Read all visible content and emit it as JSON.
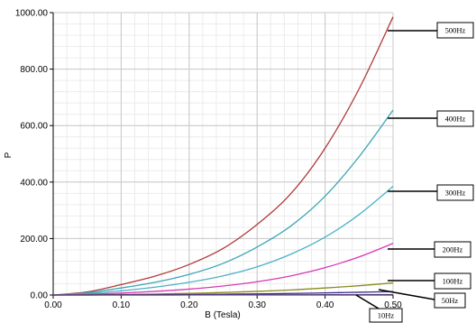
{
  "chart_data": {
    "type": "line",
    "title": "",
    "xlabel": "B (Tesla)",
    "ylabel": "P",
    "xlim": [
      0.0,
      0.5
    ],
    "ylim": [
      0.0,
      1000.0
    ],
    "x_ticks": [
      "0.00",
      "0.10",
      "0.20",
      "0.30",
      "0.40",
      "0.50"
    ],
    "y_ticks": [
      "0.00",
      "200.00",
      "400.00",
      "600.00",
      "800.00",
      "1000.00"
    ],
    "grid": true,
    "x": [
      0.0,
      0.05,
      0.1,
      0.15,
      0.2,
      0.25,
      0.3,
      0.35,
      0.4,
      0.45,
      0.5
    ],
    "series": [
      {
        "name": "500Hz",
        "color": "#b03a3a",
        "values": [
          0,
          11,
          37,
          67,
          108,
          165,
          250,
          360,
          520,
          730,
          985
        ]
      },
      {
        "name": "400Hz",
        "color": "#3aa6b5",
        "values": [
          0,
          8,
          25,
          45,
          73,
          112,
          170,
          245,
          350,
          490,
          655
        ]
      },
      {
        "name": "300Hz",
        "color": "#48b3c6",
        "values": [
          0,
          5,
          15,
          28,
          45,
          68,
          100,
          145,
          205,
          285,
          385
        ]
      },
      {
        "name": "200Hz",
        "color": "#d838b8",
        "values": [
          0,
          2.5,
          7,
          13,
          21,
          32,
          47,
          68,
          97,
          135,
          183
        ]
      },
      {
        "name": "100Hz",
        "color": "#8c8a1a",
        "values": [
          0,
          0.7,
          2,
          3.5,
          6,
          9,
          13,
          18,
          25,
          33,
          43
        ]
      },
      {
        "name": "50Hz",
        "color": "#2e2e8a",
        "values": [
          0,
          0.2,
          0.6,
          1.1,
          1.8,
          2.8,
          4,
          5.5,
          7.5,
          9.8,
          12.5
        ]
      },
      {
        "name": "10Hz",
        "color": "#5a3a7a",
        "values": [
          0,
          0.05,
          0.1,
          0.2,
          0.3,
          0.45,
          0.6,
          0.8,
          1.0,
          1.3,
          1.6
        ]
      }
    ]
  }
}
